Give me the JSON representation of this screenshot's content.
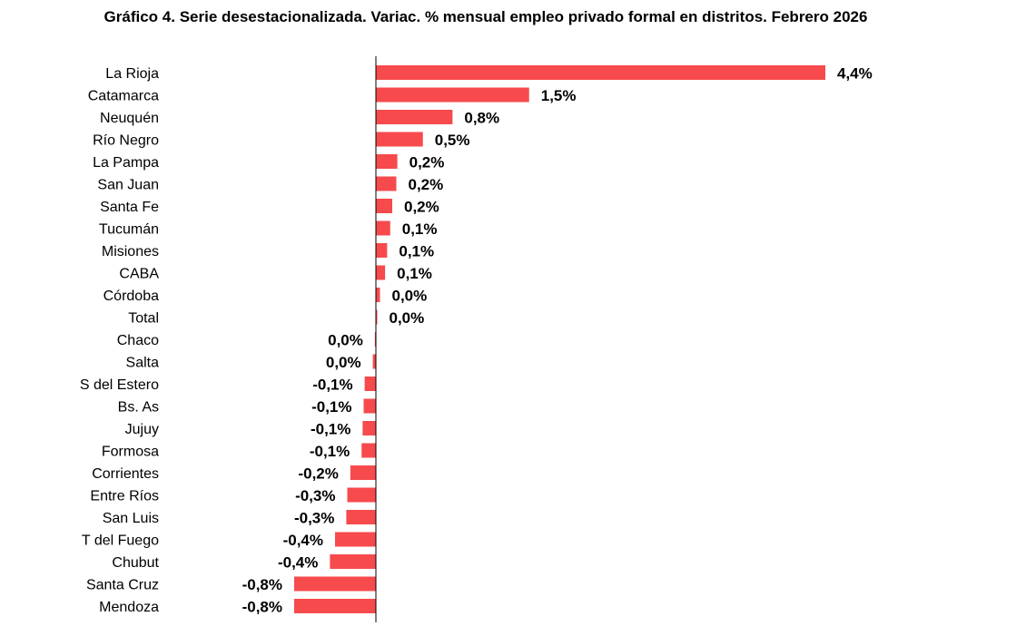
{
  "chart_data": {
    "type": "bar",
    "orientation": "horizontal",
    "title": "Gráfico 4. Serie desestacionalizada. Variac. % mensual empleo privado formal en distritos. Febrero 2026",
    "xlabel": "",
    "ylabel": "",
    "xlim": [
      -0.85,
      4.45
    ],
    "grid": false,
    "bar_color": "#f64a4c",
    "categories": [
      "La Rioja",
      "Catamarca",
      "Neuquén",
      "Río Negro",
      "La Pampa",
      "San Juan",
      "Santa Fe",
      "Tucumán",
      "Misiones",
      "CABA",
      "Córdoba",
      "Total",
      "Chaco",
      "Salta",
      "S del Estero",
      "Bs. As",
      "Jujuy",
      "Formosa",
      "Corrientes",
      "Entre Ríos",
      "San Luis",
      "T del Fuego",
      "Chubut",
      "Santa Cruz",
      "Mendoza"
    ],
    "values": [
      4.4,
      1.5,
      0.75,
      0.46,
      0.21,
      0.2,
      0.16,
      0.14,
      0.11,
      0.09,
      0.04,
      0.01,
      -0.01,
      -0.03,
      -0.11,
      -0.12,
      -0.13,
      -0.14,
      -0.25,
      -0.28,
      -0.29,
      -0.4,
      -0.45,
      -0.8,
      -0.8
    ],
    "value_labels": [
      "4,4%",
      "1,5%",
      "0,8%",
      "0,5%",
      "0,2%",
      "0,2%",
      "0,2%",
      "0,1%",
      "0,1%",
      "0,1%",
      "0,0%",
      "0,0%",
      "0,0%",
      "0,0%",
      "-0,1%",
      "-0,1%",
      "-0,1%",
      "-0,1%",
      "-0,2%",
      "-0,3%",
      "-0,3%",
      "-0,4%",
      "-0,4%",
      "-0,8%",
      "-0,8%"
    ]
  }
}
